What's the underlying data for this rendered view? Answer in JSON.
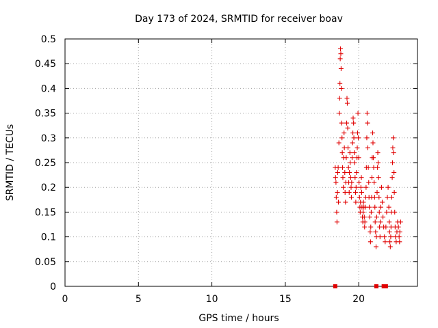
{
  "chart_data": {
    "type": "scatter",
    "title": "Day 173 of 2024, SRMTID for receiver boav",
    "xlabel": "GPS time / hours",
    "ylabel": "SRMTID / TECUs",
    "xlim": [
      0,
      24
    ],
    "ylim": [
      0,
      0.5
    ],
    "grid": true,
    "marker": "plus",
    "colors": {
      "series": "#e00000"
    },
    "x_ticks": [
      {
        "value": 0,
        "label": "0"
      },
      {
        "value": 5,
        "label": "5"
      },
      {
        "value": 10,
        "label": "10"
      },
      {
        "value": 15,
        "label": "15"
      },
      {
        "value": 20,
        "label": "20"
      }
    ],
    "y_ticks": [
      {
        "value": 0,
        "label": "0"
      },
      {
        "value": 0.05,
        "label": "0.05"
      },
      {
        "value": 0.1,
        "label": "0.1"
      },
      {
        "value": 0.15,
        "label": "0.15"
      },
      {
        "value": 0.2,
        "label": "0.2"
      },
      {
        "value": 0.25,
        "label": "0.25"
      },
      {
        "value": 0.3,
        "label": "0.3"
      },
      {
        "value": 0.35,
        "label": "0.35"
      },
      {
        "value": 0.4,
        "label": "0.4"
      },
      {
        "value": 0.45,
        "label": "0.45"
      },
      {
        "value": 0.5,
        "label": "0.5"
      }
    ],
    "series": [
      {
        "name": "SRMTID",
        "points": [
          [
            18.4,
            0.24
          ],
          [
            18.42,
            0.22
          ],
          [
            18.45,
            0.21
          ],
          [
            18.47,
            0.18
          ],
          [
            18.5,
            0.15
          ],
          [
            18.52,
            0.13
          ],
          [
            18.55,
            0.19
          ],
          [
            18.57,
            0.23
          ],
          [
            18.6,
            0.24
          ],
          [
            18.62,
            0.17
          ],
          [
            18.65,
            0.29
          ],
          [
            18.68,
            0.35
          ],
          [
            18.7,
            0.38
          ],
          [
            18.72,
            0.41
          ],
          [
            18.74,
            0.46
          ],
          [
            18.76,
            0.48
          ],
          [
            18.78,
            0.47
          ],
          [
            18.8,
            0.44
          ],
          [
            18.82,
            0.4
          ],
          [
            18.84,
            0.33
          ],
          [
            18.86,
            0.3
          ],
          [
            18.88,
            0.27
          ],
          [
            18.9,
            0.24
          ],
          [
            18.92,
            0.22
          ],
          [
            18.95,
            0.2
          ],
          [
            18.97,
            0.26
          ],
          [
            19.0,
            0.31
          ],
          [
            19.02,
            0.28
          ],
          [
            19.05,
            0.23
          ],
          [
            19.07,
            0.19
          ],
          [
            19.1,
            0.17
          ],
          [
            19.12,
            0.21
          ],
          [
            19.15,
            0.26
          ],
          [
            19.18,
            0.33
          ],
          [
            19.2,
            0.38
          ],
          [
            19.22,
            0.37
          ],
          [
            19.25,
            0.32
          ],
          [
            19.27,
            0.28
          ],
          [
            19.3,
            0.24
          ],
          [
            19.32,
            0.21
          ],
          [
            19.35,
            0.19
          ],
          [
            19.37,
            0.23
          ],
          [
            19.4,
            0.27
          ],
          [
            19.42,
            0.25
          ],
          [
            19.45,
            0.22
          ],
          [
            19.48,
            0.2
          ],
          [
            19.5,
            0.18
          ],
          [
            19.52,
            0.21
          ],
          [
            19.55,
            0.26
          ],
          [
            19.58,
            0.29
          ],
          [
            19.6,
            0.31
          ],
          [
            19.62,
            0.34
          ],
          [
            19.65,
            0.33
          ],
          [
            19.67,
            0.3
          ],
          [
            19.7,
            0.27
          ],
          [
            19.72,
            0.25
          ],
          [
            19.75,
            0.22
          ],
          [
            19.78,
            0.19
          ],
          [
            19.8,
            0.17
          ],
          [
            19.82,
            0.2
          ],
          [
            19.85,
            0.23
          ],
          [
            19.88,
            0.26
          ],
          [
            19.9,
            0.28
          ],
          [
            19.92,
            0.31
          ],
          [
            19.95,
            0.35
          ],
          [
            19.97,
            0.3
          ],
          [
            20.0,
            0.26
          ],
          [
            20.02,
            0.21
          ],
          [
            20.05,
            0.18
          ],
          [
            20.08,
            0.16
          ],
          [
            20.1,
            0.15
          ],
          [
            20.12,
            0.17
          ],
          [
            20.15,
            0.2
          ],
          [
            20.18,
            0.22
          ],
          [
            20.2,
            0.19
          ],
          [
            20.22,
            0.16
          ],
          [
            20.25,
            0.14
          ],
          [
            20.28,
            0.13
          ],
          [
            20.3,
            0.15
          ],
          [
            20.32,
            0.17
          ],
          [
            20.35,
            0.16
          ],
          [
            20.38,
            0.14
          ],
          [
            20.4,
            0.12
          ],
          [
            20.42,
            0.13
          ],
          [
            20.45,
            0.16
          ],
          [
            20.48,
            0.18
          ],
          [
            20.5,
            0.2
          ],
          [
            20.52,
            0.24
          ],
          [
            20.55,
            0.3
          ],
          [
            20.57,
            0.35
          ],
          [
            20.6,
            0.33
          ],
          [
            20.62,
            0.28
          ],
          [
            20.65,
            0.24
          ],
          [
            20.68,
            0.21
          ],
          [
            20.7,
            0.18
          ],
          [
            20.72,
            0.16
          ],
          [
            20.75,
            0.14
          ],
          [
            20.78,
            0.11
          ],
          [
            20.8,
            0.09
          ],
          [
            20.82,
            0.12
          ],
          [
            20.85,
            0.15
          ],
          [
            20.88,
            0.18
          ],
          [
            20.9,
            0.22
          ],
          [
            20.92,
            0.26
          ],
          [
            20.95,
            0.31
          ],
          [
            20.97,
            0.29
          ],
          [
            21.0,
            0.26
          ],
          [
            21.02,
            0.24
          ],
          [
            21.05,
            0.21
          ],
          [
            21.08,
            0.18
          ],
          [
            21.1,
            0.16
          ],
          [
            21.12,
            0.13
          ],
          [
            21.15,
            0.11
          ],
          [
            21.18,
            0.08
          ],
          [
            21.2,
            0.1
          ],
          [
            21.22,
            0.14
          ],
          [
            21.25,
            0.19
          ],
          [
            21.28,
            0.24
          ],
          [
            21.3,
            0.27
          ],
          [
            21.32,
            0.25
          ],
          [
            21.35,
            0.22
          ],
          [
            21.38,
            0.18
          ],
          [
            21.4,
            0.15
          ],
          [
            21.42,
            0.12
          ],
          [
            21.45,
            0.1
          ],
          [
            21.48,
            0.13
          ],
          [
            21.5,
            0.16
          ],
          [
            21.55,
            0.2
          ],
          [
            21.6,
            0.17
          ],
          [
            21.65,
            0.14
          ],
          [
            21.7,
            0.12
          ],
          [
            21.75,
            0.1
          ],
          [
            21.8,
            0.09
          ],
          [
            21.85,
            0.12
          ],
          [
            21.9,
            0.15
          ],
          [
            21.95,
            0.18
          ],
          [
            22.0,
            0.2
          ],
          [
            22.05,
            0.16
          ],
          [
            22.08,
            0.13
          ],
          [
            22.1,
            0.11
          ],
          [
            22.12,
            0.09
          ],
          [
            22.15,
            0.08
          ],
          [
            22.18,
            0.1
          ],
          [
            22.2,
            0.12
          ],
          [
            22.22,
            0.15
          ],
          [
            22.25,
            0.18
          ],
          [
            22.28,
            0.22
          ],
          [
            22.3,
            0.25
          ],
          [
            22.32,
            0.28
          ],
          [
            22.35,
            0.3
          ],
          [
            22.38,
            0.27
          ],
          [
            22.4,
            0.23
          ],
          [
            22.42,
            0.19
          ],
          [
            22.45,
            0.15
          ],
          [
            22.48,
            0.12
          ],
          [
            22.5,
            0.1
          ],
          [
            22.55,
            0.09
          ],
          [
            22.6,
            0.11
          ],
          [
            22.65,
            0.13
          ],
          [
            22.7,
            0.12
          ],
          [
            22.75,
            0.1
          ],
          [
            22.78,
            0.09
          ],
          [
            22.8,
            0.11
          ],
          [
            22.85,
            0.13
          ]
        ]
      }
    ],
    "zero_points": [
      [
        18.4,
        0
      ],
      [
        21.2,
        0
      ],
      [
        21.7,
        0
      ],
      [
        21.78,
        0
      ],
      [
        21.85,
        0
      ]
    ]
  }
}
